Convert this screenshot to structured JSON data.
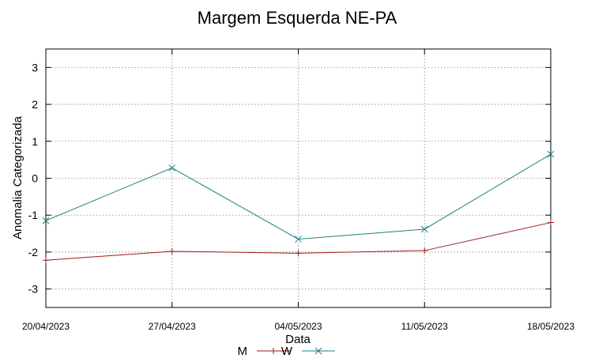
{
  "chart_data": {
    "type": "line",
    "title": "Margem Esquerda NE-PA",
    "xlabel": "Data",
    "ylabel": "Anomalia Categorizada",
    "categories": [
      "20/04/2023",
      "27/04/2023",
      "04/05/2023",
      "11/05/2023",
      "18/05/2023"
    ],
    "ylim": [
      -3.5,
      3.5
    ],
    "yticks": [
      -3,
      -2,
      -1,
      0,
      1,
      2,
      3
    ],
    "grid": true,
    "legend_position": "bottom-center",
    "series": [
      {
        "name": "M",
        "color": "#a01a1a",
        "marker": "plus",
        "values": [
          -2.22,
          -1.98,
          -2.03,
          -1.96,
          -1.2
        ]
      },
      {
        "name": "W",
        "color": "#1a8080",
        "marker": "cross",
        "values": [
          -1.15,
          0.28,
          -1.65,
          -1.38,
          0.65
        ]
      }
    ]
  }
}
